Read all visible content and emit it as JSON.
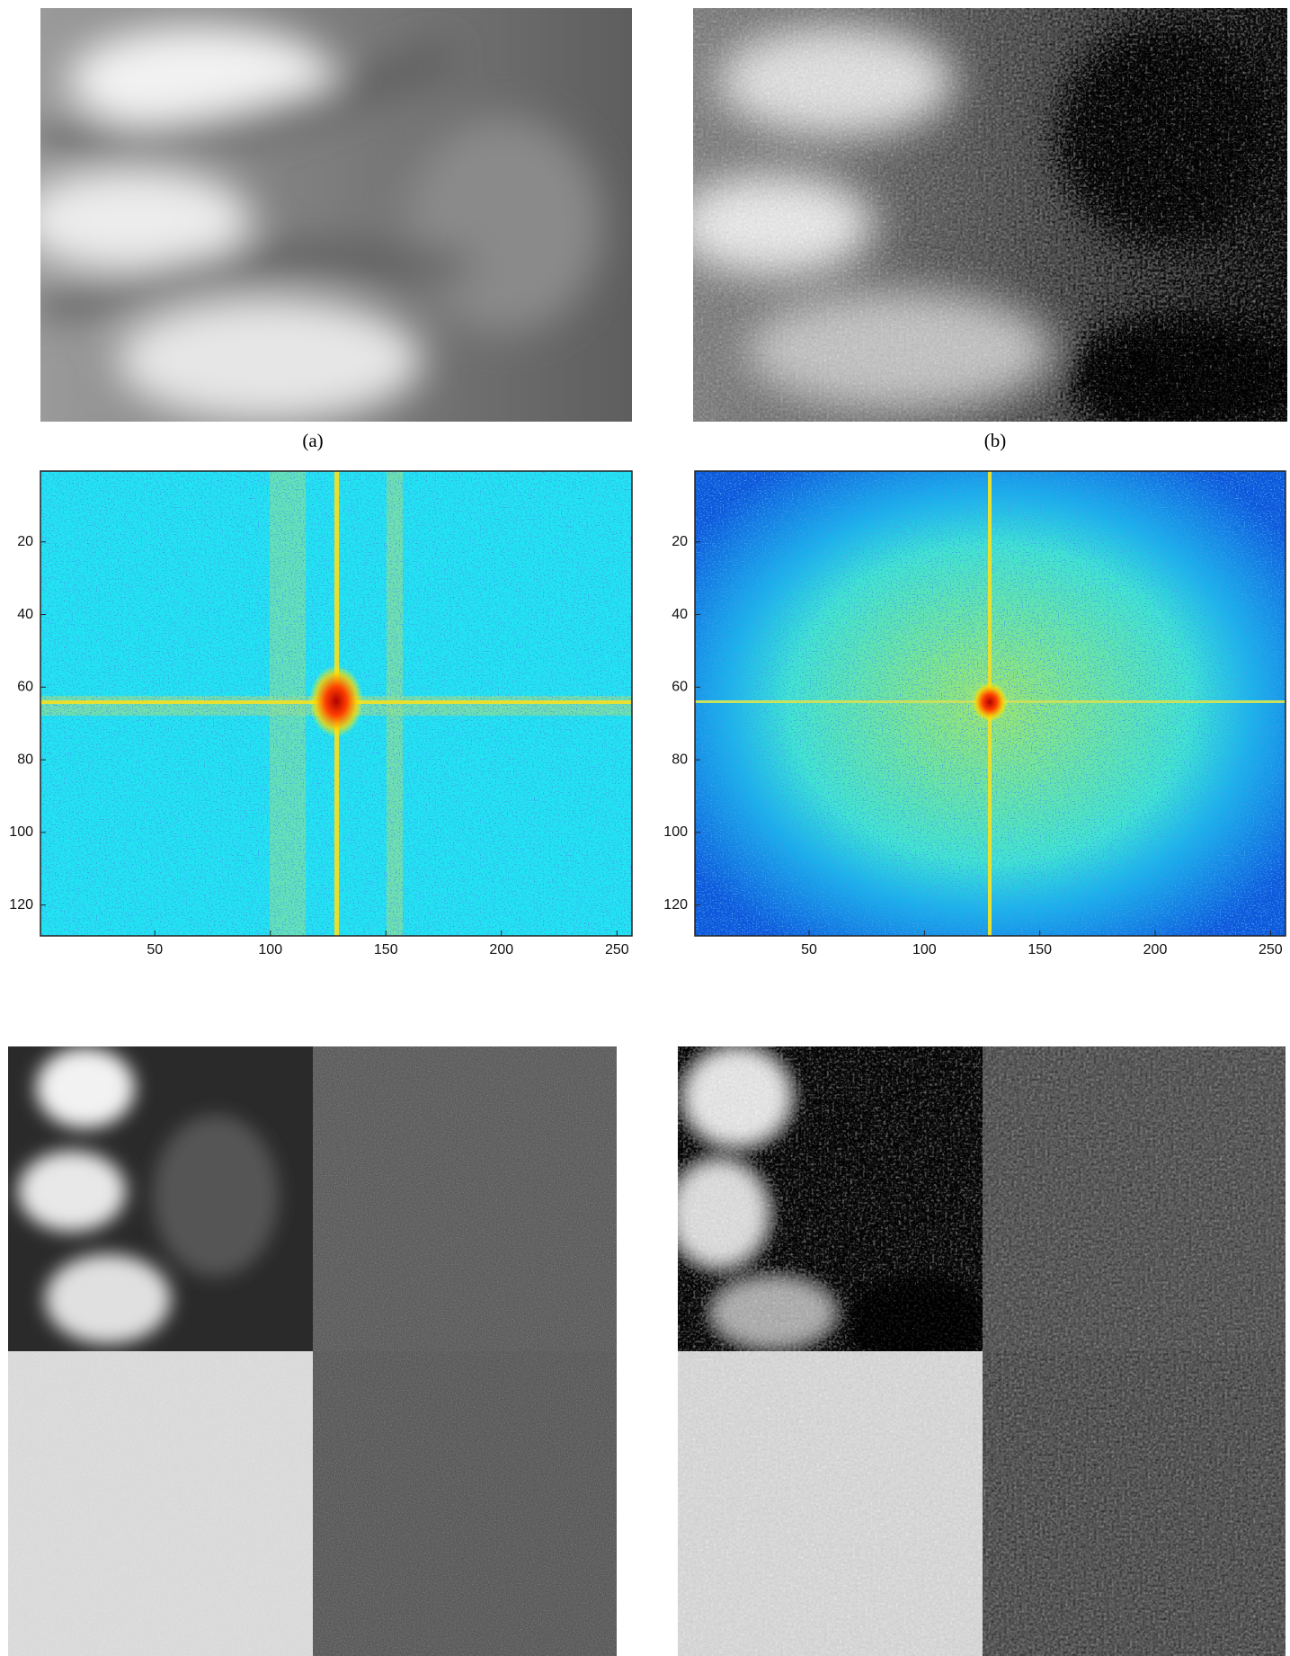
{
  "captions": [
    "(a)",
    "(b)"
  ],
  "spectra": [
    {
      "xlim": [
        0.5,
        256.5
      ],
      "ylim": [
        0.5,
        128.5
      ],
      "xticks": [
        50,
        100,
        150,
        200,
        250
      ],
      "yticks": [
        20,
        40,
        60,
        80,
        100,
        120
      ]
    },
    {
      "xlim": [
        0.5,
        256.5
      ],
      "ylim": [
        0.5,
        128.5
      ],
      "xticks": [
        50,
        100,
        150,
        200,
        250
      ],
      "yticks": [
        20,
        40,
        60,
        80,
        100,
        120
      ]
    }
  ]
}
